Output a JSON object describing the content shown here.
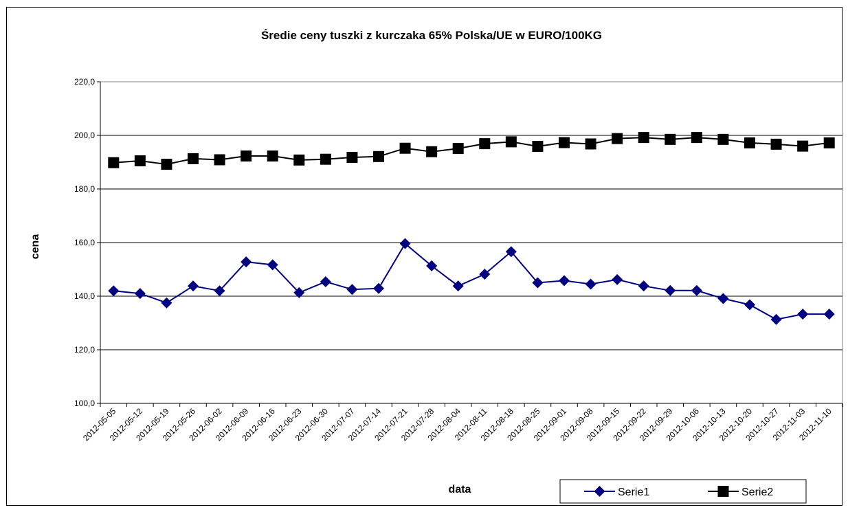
{
  "chart_data": {
    "type": "line",
    "title": "Średie ceny tuszki z kurczaka 65% Polska/UE w EURO/100KG",
    "xlabel": "data",
    "ylabel": "cena",
    "ylim": [
      100,
      220
    ],
    "yticks": [
      "100,0",
      "120,0",
      "140,0",
      "160,0",
      "180,0",
      "200,0",
      "220,0"
    ],
    "grid": true,
    "legend_position": "bottom-right",
    "categories": [
      "2012-05-05",
      "2012-05-12",
      "2012-05-19",
      "2012-05-26",
      "2012-06-02",
      "2012-06-09",
      "2012-06-16",
      "2012-06-23",
      "2012-06-30",
      "2012-07-07",
      "2012-07-14",
      "2012-07-21",
      "2012-07-28",
      "2012-08-04",
      "2012-08-11",
      "2012-08-18",
      "2012-08-25",
      "2012-09-01",
      "2012-09-08",
      "2012-09-15",
      "2012-09-22",
      "2012-09-29",
      "2012-10-06",
      "2012-10-13",
      "2012-10-20",
      "2012-10-27",
      "2012-11-03",
      "2012-11-10"
    ],
    "series": [
      {
        "name": "Serie1",
        "color": "#000080",
        "marker": "diamond",
        "values": [
          142.0,
          141.0,
          137.5,
          143.8,
          142.0,
          152.8,
          151.7,
          141.3,
          145.4,
          142.5,
          142.9,
          159.6,
          151.3,
          143.8,
          148.2,
          156.6,
          145.0,
          145.8,
          144.5,
          146.2,
          143.8,
          142.1,
          142.1,
          139.1,
          136.8,
          131.3,
          133.3,
          133.3
        ]
      },
      {
        "name": "Serie2",
        "color": "#000000",
        "marker": "square",
        "values": [
          189.8,
          190.5,
          189.2,
          191.3,
          190.9,
          192.3,
          192.3,
          190.8,
          191.1,
          191.8,
          192.1,
          195.2,
          193.9,
          195.1,
          196.9,
          197.6,
          195.9,
          197.3,
          196.8,
          198.8,
          199.2,
          198.5,
          199.2,
          198.5,
          197.2,
          196.7,
          196.0,
          197.2
        ]
      }
    ]
  }
}
